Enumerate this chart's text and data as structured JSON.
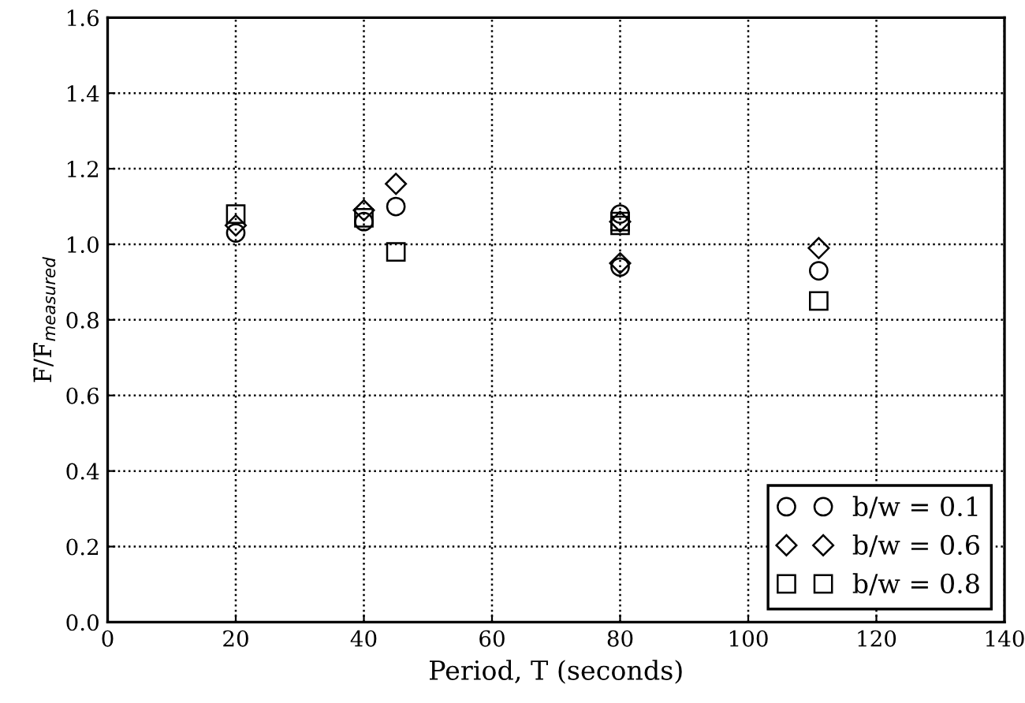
{
  "chart_data": {
    "type": "scatter",
    "xlabel": "Period, T (seconds)",
    "ylabel": "F̄/F̄$_{measured}$",
    "xlim": [
      0,
      140
    ],
    "xticks": [
      0,
      20,
      40,
      60,
      80,
      100,
      120,
      140
    ],
    "ylim": [
      0.0,
      1.6
    ],
    "yticks": [
      {
        "value": 0.0,
        "label": "0.0"
      },
      {
        "value": 0.2,
        "label": "0.2"
      },
      {
        "value": 0.4,
        "label": "0.4"
      },
      {
        "value": 0.6,
        "label": "0.6"
      },
      {
        "value": 0.8,
        "label": "0.8"
      },
      {
        "value": 1.0,
        "label": "1.0"
      },
      {
        "value": 1.2,
        "label": "1.2"
      },
      {
        "value": 1.4,
        "label": "1.4"
      },
      {
        "value": 1.6,
        "label": "1.6"
      }
    ],
    "grid": true,
    "legend": "bottom right",
    "series": [
      {
        "name": "b/w = 0.1",
        "color": "#000000",
        "marker": "circle",
        "x": [
          20,
          40,
          45,
          80,
          80,
          111
        ],
        "values": [
          1.03,
          1.06,
          1.1,
          1.08,
          0.94,
          0.93
        ]
      },
      {
        "name": "b/w = 0.6",
        "color": "#000000",
        "marker": "diamond",
        "x": [
          20,
          40,
          45,
          80,
          80,
          111
        ],
        "values": [
          1.05,
          1.09,
          1.16,
          1.06,
          0.95,
          0.99
        ]
      },
      {
        "name": "b/w = 0.8",
        "color": "#000000",
        "marker": "square",
        "x": [
          20,
          40,
          45,
          80,
          80,
          111
        ],
        "values": [
          1.08,
          1.07,
          0.98,
          1.05,
          1.06,
          0.85
        ]
      }
    ]
  }
}
